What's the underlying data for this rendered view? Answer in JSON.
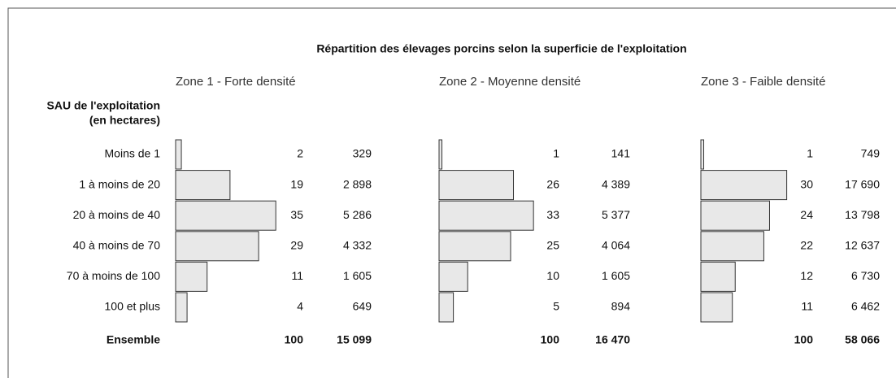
{
  "title": "Répartition des élevages porcins selon la superficie de l'exploitation",
  "row_header": [
    "SAU de l'exploitation",
    "(en hectares)"
  ],
  "categories": [
    "Moins de 1",
    "1 à moins de 20",
    "20 à moins de 40",
    "40 à moins de 70",
    "70 à moins de 100",
    "100 et plus"
  ],
  "total_label": "Ensemble",
  "chart_data": [
    {
      "type": "bar",
      "title": "Zone 1 - Forte densité",
      "color": "#e8e8e8",
      "values": [
        2,
        19,
        35,
        29,
        11,
        4
      ],
      "counts": [
        329,
        2898,
        5286,
        4332,
        1605,
        649
      ],
      "count_labels": [
        "329",
        "2 898",
        "5 286",
        "4 332",
        "1 605",
        "649"
      ],
      "total": 100,
      "total_count": 15099,
      "total_count_label": "15 099"
    },
    {
      "type": "bar",
      "title": "Zone 2 - Moyenne densité",
      "color": "#e8e8e8",
      "values": [
        1,
        26,
        33,
        25,
        10,
        5
      ],
      "counts": [
        141,
        4389,
        5377,
        4064,
        1605,
        894
      ],
      "count_labels": [
        "141",
        "4 389",
        "5 377",
        "4 064",
        "1 605",
        "894"
      ],
      "total": 100,
      "total_count": 16470,
      "total_count_label": "16 470"
    },
    {
      "type": "bar",
      "title": "Zone 3 - Faible densité",
      "color": "#e8e8e8",
      "values": [
        1,
        30,
        24,
        22,
        12,
        11
      ],
      "counts": [
        749,
        17690,
        13798,
        12637,
        6730,
        6462
      ],
      "count_labels": [
        "749",
        "17 690",
        "13 798",
        "12 637",
        "6 730",
        "6 462"
      ],
      "total": 100,
      "total_count": 58066,
      "total_count_label": "58 066"
    }
  ]
}
